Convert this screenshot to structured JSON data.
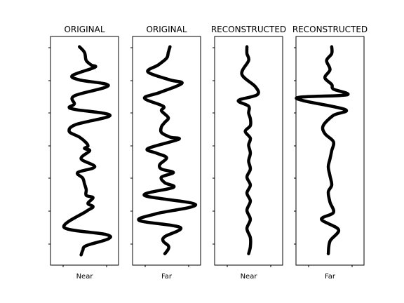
{
  "chart_data": [
    {
      "type": "line",
      "title": "ORIGINAL",
      "xlabel": "Near",
      "color": "#000000",
      "xlim": [
        -1,
        1
      ],
      "ylim": [
        0,
        1
      ],
      "points": [
        [
          -0.15,
          0.955
        ],
        [
          0.0,
          0.93
        ],
        [
          0.05,
          0.895
        ],
        [
          0.2,
          0.875
        ],
        [
          0.3,
          0.865
        ],
        [
          -0.35,
          0.83
        ],
        [
          -0.15,
          0.81
        ],
        [
          0.7,
          0.785
        ],
        [
          -0.3,
          0.74
        ],
        [
          -0.3,
          0.705
        ],
        [
          -0.45,
          0.69
        ],
        [
          -0.25,
          0.68
        ],
        [
          0.75,
          0.655
        ],
        [
          -0.25,
          0.615
        ],
        [
          -0.45,
          0.585
        ],
        [
          -0.15,
          0.56
        ],
        [
          0.05,
          0.535
        ],
        [
          0.1,
          0.52
        ],
        [
          0.0,
          0.51
        ],
        [
          0.15,
          0.5
        ],
        [
          -0.1,
          0.465
        ],
        [
          0.3,
          0.43
        ],
        [
          -0.2,
          0.405
        ],
        [
          -0.05,
          0.38
        ],
        [
          0.0,
          0.355
        ],
        [
          0.05,
          0.33
        ],
        [
          0.05,
          0.305
        ],
        [
          0.25,
          0.295
        ],
        [
          0.1,
          0.27
        ],
        [
          0.25,
          0.255
        ],
        [
          0.05,
          0.235
        ],
        [
          -0.6,
          0.165
        ],
        [
          0.6,
          0.135
        ],
        [
          0.7,
          0.115
        ],
        [
          0.05,
          0.085
        ],
        [
          -0.05,
          0.065
        ],
        [
          -0.1,
          0.045
        ]
      ]
    },
    {
      "type": "line",
      "title": "ORIGINAL",
      "xlabel": "Far",
      "color": "#000000",
      "xlim": [
        -1,
        1
      ],
      "ylim": [
        0,
        1
      ],
      "points": [
        [
          0.1,
          0.955
        ],
        [
          0.05,
          0.93
        ],
        [
          0.0,
          0.905
        ],
        [
          -0.25,
          0.875
        ],
        [
          -0.55,
          0.845
        ],
        [
          0.1,
          0.81
        ],
        [
          0.45,
          0.795
        ],
        [
          -0.2,
          0.755
        ],
        [
          -0.65,
          0.73
        ],
        [
          -0.1,
          0.695
        ],
        [
          -0.15,
          0.675
        ],
        [
          0.05,
          0.645
        ],
        [
          -0.05,
          0.625
        ],
        [
          -0.15,
          0.605
        ],
        [
          -0.15,
          0.58
        ],
        [
          0.1,
          0.56
        ],
        [
          0.35,
          0.55
        ],
        [
          -0.55,
          0.51
        ],
        [
          -0.3,
          0.49
        ],
        [
          0.0,
          0.47
        ],
        [
          -0.2,
          0.44
        ],
        [
          -0.15,
          0.42
        ],
        [
          0.2,
          0.405
        ],
        [
          -0.15,
          0.385
        ],
        [
          -0.05,
          0.36
        ],
        [
          0.2,
          0.34
        ],
        [
          -0.65,
          0.305
        ],
        [
          0.85,
          0.265
        ],
        [
          -0.3,
          0.225
        ],
        [
          -0.8,
          0.195
        ],
        [
          0.4,
          0.165
        ],
        [
          -0.05,
          0.125
        ],
        [
          -0.1,
          0.105
        ],
        [
          0.05,
          0.085
        ],
        [
          0.05,
          0.07
        ],
        [
          -0.05,
          0.05
        ]
      ]
    },
    {
      "type": "line",
      "title": "RECONSTRUCTED",
      "xlabel": "Near",
      "color": "#000000",
      "xlim": [
        -1,
        1
      ],
      "ylim": [
        0,
        1
      ],
      "points": [
        [
          -0.05,
          0.955
        ],
        [
          -0.05,
          0.925
        ],
        [
          0.0,
          0.895
        ],
        [
          -0.2,
          0.835
        ],
        [
          0.2,
          0.78
        ],
        [
          0.25,
          0.745
        ],
        [
          -0.3,
          0.72
        ],
        [
          0.0,
          0.695
        ],
        [
          0.0,
          0.665
        ],
        [
          0.05,
          0.64
        ],
        [
          0.05,
          0.61
        ],
        [
          -0.1,
          0.585
        ],
        [
          0.05,
          0.555
        ],
        [
          0.0,
          0.525
        ],
        [
          0.05,
          0.49
        ],
        [
          0.0,
          0.455
        ],
        [
          0.05,
          0.42
        ],
        [
          -0.05,
          0.385
        ],
        [
          0.05,
          0.35
        ],
        [
          -0.05,
          0.315
        ],
        [
          0.05,
          0.28
        ],
        [
          -0.05,
          0.24
        ],
        [
          0.05,
          0.2
        ],
        [
          -0.05,
          0.16
        ],
        [
          0.05,
          0.12
        ],
        [
          0.05,
          0.08
        ],
        [
          0.0,
          0.05
        ]
      ]
    },
    {
      "type": "line",
      "title": "RECONSTRUCTED",
      "xlabel": "Far",
      "color": "#000000",
      "xlim": [
        -1,
        1
      ],
      "ylim": [
        0,
        1
      ],
      "points": [
        [
          0.05,
          0.955
        ],
        [
          0.05,
          0.925
        ],
        [
          -0.1,
          0.895
        ],
        [
          0.0,
          0.855
        ],
        [
          -0.15,
          0.82
        ],
        [
          0.05,
          0.79
        ],
        [
          0.1,
          0.77
        ],
        [
          0.5,
          0.745
        ],
        [
          -0.85,
          0.735
        ],
        [
          -0.8,
          0.72
        ],
        [
          0.45,
          0.68
        ],
        [
          0.1,
          0.655
        ],
        [
          -0.2,
          0.61
        ],
        [
          -0.15,
          0.575
        ],
        [
          0.1,
          0.54
        ],
        [
          0.05,
          0.5
        ],
        [
          0.0,
          0.465
        ],
        [
          -0.05,
          0.43
        ],
        [
          0.0,
          0.39
        ],
        [
          0.05,
          0.35
        ],
        [
          -0.05,
          0.32
        ],
        [
          0.0,
          0.275
        ],
        [
          0.1,
          0.23
        ],
        [
          -0.25,
          0.2
        ],
        [
          0.25,
          0.155
        ],
        [
          0.0,
          0.105
        ],
        [
          -0.05,
          0.05
        ]
      ]
    }
  ]
}
